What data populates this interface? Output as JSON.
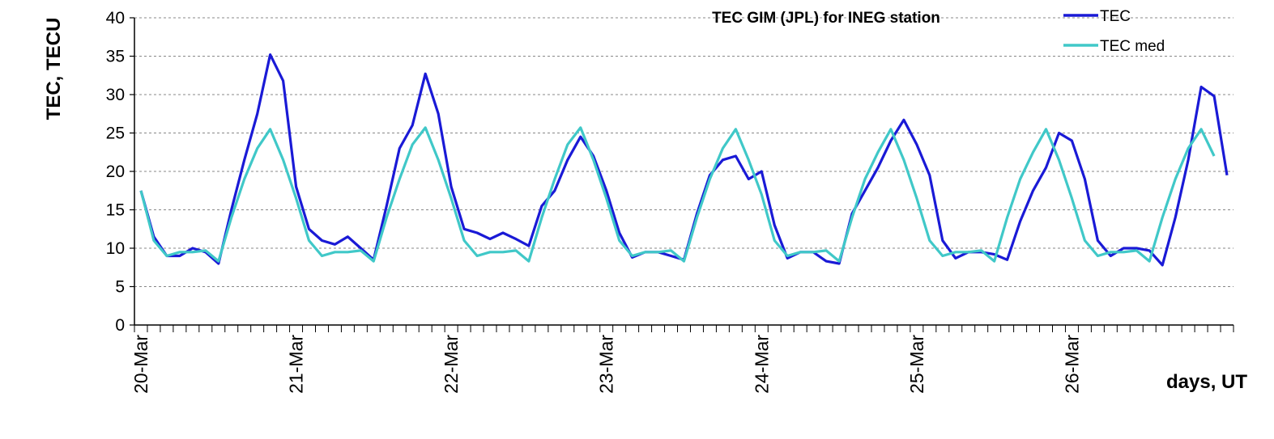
{
  "chart_data": {
    "type": "line",
    "title": "TEC GIM (JPL) for INEG station",
    "ylabel": "TEC, TECU",
    "xlabel": "days, UT",
    "ylim": [
      0,
      40
    ],
    "yticks": [
      0,
      5,
      10,
      15,
      20,
      25,
      30,
      35,
      40
    ],
    "x_start": "20-Mar",
    "x_step_hours": 2,
    "x_day_labels": [
      "20-Mar",
      "21-Mar",
      "22-Mar",
      "23-Mar",
      "24-Mar",
      "25-Mar",
      "26-Mar"
    ],
    "grid": "horizontal dashed",
    "legend_position": "top-right",
    "series": [
      {
        "name": "TEC",
        "color": "#1a1ad6",
        "values": [
          17.5,
          11.5,
          9,
          9,
          10,
          9.5,
          8,
          15,
          21.5,
          27.5,
          35.2,
          31.8,
          18,
          12.5,
          11,
          10.5,
          11.5,
          10,
          8.5,
          15.5,
          23,
          26,
          32.7,
          27.5,
          18,
          12.5,
          12,
          11.2,
          12,
          11.2,
          10.3,
          15.5,
          17.5,
          21.5,
          24.5,
          22,
          17.5,
          12,
          8.8,
          9.5,
          9.5,
          9,
          8.5,
          14.5,
          19.5,
          21.5,
          22,
          19,
          20,
          13,
          8.7,
          9.5,
          9.5,
          8.3,
          8,
          14.5,
          17.5,
          20.5,
          24,
          26.7,
          23.5,
          19.5,
          11,
          8.7,
          9.5,
          9.5,
          9.2,
          8.5,
          13.5,
          17.5,
          20.5,
          25,
          24,
          19,
          11,
          9,
          10,
          10,
          9.7,
          7.8,
          14,
          21.5,
          31,
          29.8,
          19.5
        ]
      },
      {
        "name": "TEC med",
        "color": "#40c8c8",
        "values": [
          17.5,
          11,
          9,
          9.5,
          9.5,
          9.7,
          8.3,
          14,
          19,
          23,
          25.5,
          21.5,
          16.5,
          11,
          9,
          9.5,
          9.5,
          9.7,
          8.3,
          14,
          19,
          23.5,
          25.7,
          21.5,
          16.5,
          11,
          9,
          9.5,
          9.5,
          9.7,
          8.3,
          14,
          19,
          23.5,
          25.7,
          21.5,
          16.5,
          11,
          9,
          9.5,
          9.5,
          9.7,
          8.3,
          14,
          19,
          23,
          25.5,
          21.5,
          17,
          11,
          9,
          9.5,
          9.5,
          9.7,
          8.3,
          14,
          19,
          22.5,
          25.5,
          21.5,
          16.5,
          11,
          9,
          9.5,
          9.5,
          9.7,
          8.3,
          14,
          19,
          22.5,
          25.5,
          21.5,
          16.5,
          11,
          9,
          9.5,
          9.5,
          9.7,
          8.3,
          14,
          19,
          23,
          25.5,
          22
        ]
      }
    ]
  }
}
